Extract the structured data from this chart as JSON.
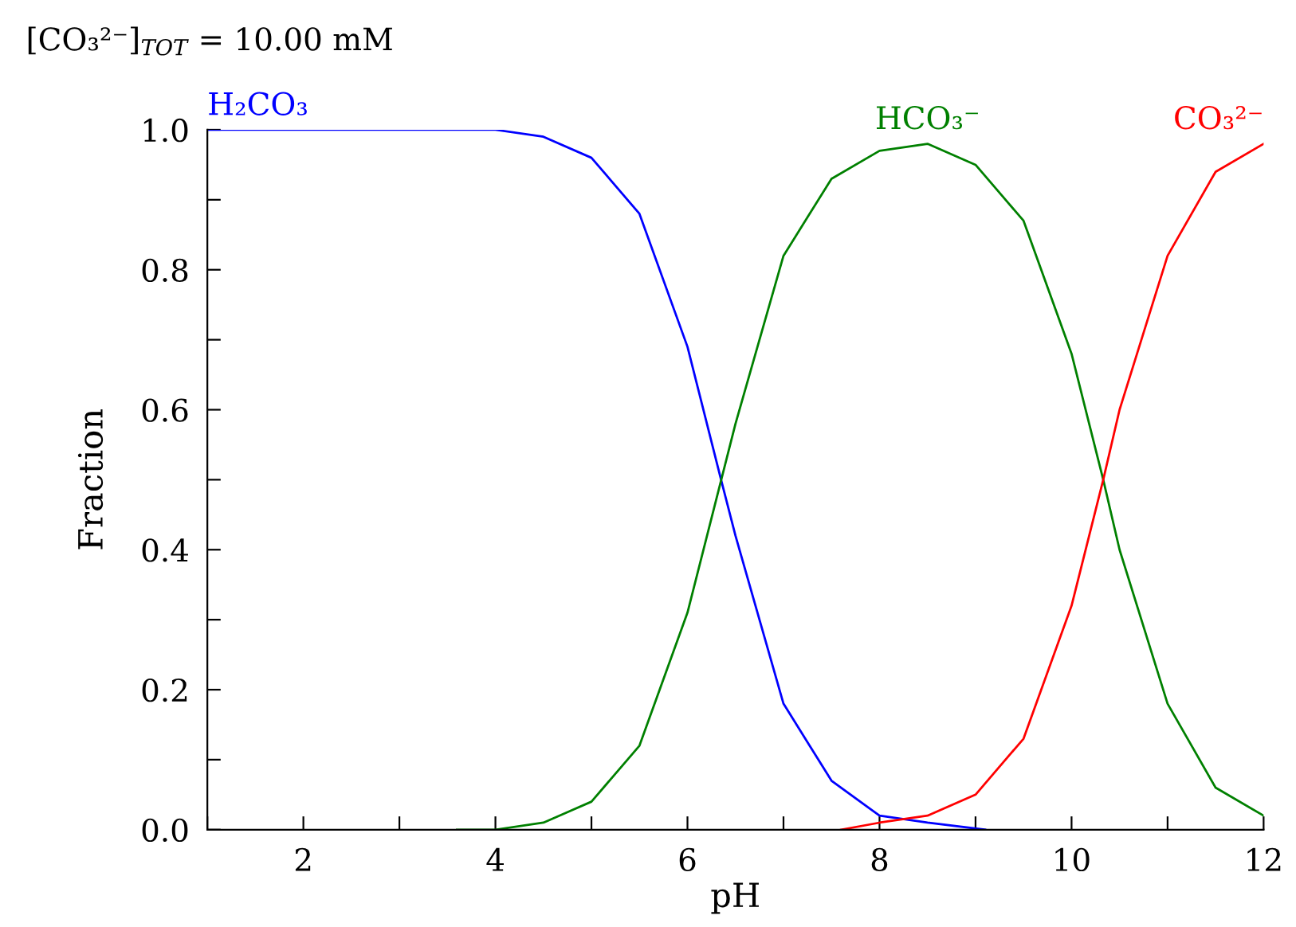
{
  "chart_data": {
    "type": "line",
    "title": "[CO₃²⁻]$_{TOT}$ = 10.00 mM",
    "xlabel": "pH",
    "ylabel": "Fraction",
    "xlim": [
      1,
      12
    ],
    "ylim": [
      0,
      1
    ],
    "xticks": [
      {
        "value": 1,
        "label": null
      },
      2,
      {
        "value": 3,
        "label": null
      },
      4,
      {
        "value": 5,
        "label": null
      },
      6,
      {
        "value": 7,
        "label": null
      },
      8,
      {
        "value": 9,
        "label": null
      },
      10,
      {
        "value": 11,
        "label": null
      },
      12
    ],
    "yticks": [
      {
        "value": 0,
        "label": "0.0"
      },
      {
        "value": 0.1,
        "label": null
      },
      {
        "value": 0.2,
        "label": "0.2"
      },
      {
        "value": 0.3,
        "label": null
      },
      {
        "value": 0.4,
        "label": "0.4"
      },
      {
        "value": 0.5,
        "label": null
      },
      {
        "value": 0.6,
        "label": "0.6"
      },
      {
        "value": 0.7,
        "label": null
      },
      {
        "value": 0.8,
        "label": "0.8"
      },
      {
        "value": 0.9,
        "label": null
      },
      {
        "value": 1.0,
        "label": "1.0"
      }
    ],
    "grid": false,
    "legend": false,
    "marker": "none",
    "line_style": "solid",
    "series": [
      {
        "name": "H₂CO₃",
        "color": "#0000ff",
        "x": [
          1,
          2,
          3,
          4,
          4.5,
          5,
          5.5,
          6,
          6.35,
          6.5,
          7,
          7.5,
          8,
          8.5,
          9.1
        ],
        "values": [
          1.0,
          1.0,
          1.0,
          1.0,
          0.99,
          0.96,
          0.88,
          0.69,
          0.5,
          0.42,
          0.18,
          0.07,
          0.02,
          0.01,
          0.0
        ]
      },
      {
        "name": "HCO₃⁻",
        "color": "#008000",
        "x": [
          3.6,
          4,
          4.5,
          5,
          5.5,
          6,
          6.5,
          7,
          7.5,
          8,
          8.5,
          9,
          9.5,
          10,
          10.33,
          10.5,
          11,
          11.5,
          12
        ],
        "values": [
          0.0,
          0.0,
          0.01,
          0.04,
          0.12,
          0.31,
          0.58,
          0.82,
          0.93,
          0.97,
          0.98,
          0.95,
          0.87,
          0.68,
          0.5,
          0.4,
          0.18,
          0.06,
          0.02
        ]
      },
      {
        "name": "CO₃²⁻",
        "color": "#ff0000",
        "x": [
          7.6,
          8,
          8.5,
          9,
          9.5,
          10,
          10.33,
          10.5,
          11,
          11.5,
          12
        ],
        "values": [
          0.0,
          0.01,
          0.02,
          0.05,
          0.13,
          0.32,
          0.5,
          0.6,
          0.82,
          0.94,
          0.98
        ]
      }
    ]
  }
}
